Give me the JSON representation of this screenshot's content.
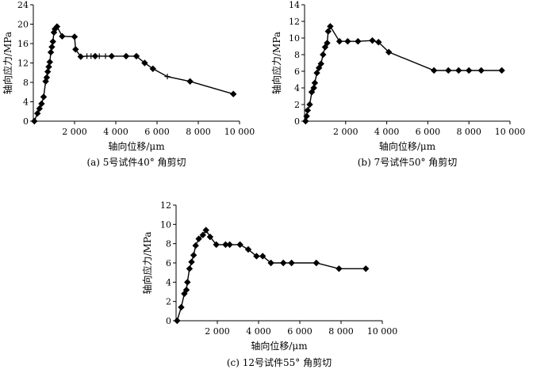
{
  "chart_data": [
    {
      "type": "line",
      "caption": "(a) 5号试件40° 角剪切",
      "xlabel": "轴向位移/μm",
      "ylabel": "轴向应力/MPa",
      "xlim": [
        0,
        10000
      ],
      "ylim": [
        0,
        24
      ],
      "xticks": [
        2000,
        4000,
        6000,
        8000,
        10000
      ],
      "xtick_labels": [
        "2 000",
        "4 000",
        "6 000",
        "8 000",
        "10 000"
      ],
      "yticks": [
        0,
        4,
        8,
        12,
        16,
        20,
        24
      ],
      "series": [
        {
          "marker": "diamond",
          "points": [
            [
              50,
              0
            ],
            [
              200,
              1.6
            ],
            [
              300,
              2.6
            ],
            [
              400,
              3.6
            ],
            [
              500,
              5.0
            ],
            [
              600,
              8.2
            ],
            [
              650,
              9.0
            ],
            [
              700,
              10.2
            ],
            [
              750,
              11.2
            ],
            [
              800,
              12.2
            ],
            [
              850,
              14.2
            ],
            [
              900,
              15.3
            ],
            [
              950,
              16.4
            ],
            [
              1000,
              18.3
            ],
            [
              1050,
              19.0
            ],
            [
              1150,
              19.5
            ],
            [
              1400,
              17.5
            ],
            [
              2000,
              17.4
            ],
            [
              2050,
              14.8
            ],
            [
              2300,
              13.3
            ],
            [
              3000,
              13.4
            ],
            [
              3800,
              13.4
            ],
            [
              4500,
              13.4
            ],
            [
              5000,
              13.4
            ],
            [
              5400,
              12.0
            ],
            [
              5800,
              10.8
            ],
            [
              7600,
              8.2
            ],
            [
              9700,
              5.6
            ]
          ]
        },
        {
          "marker": "plus",
          "points": [
            [
              2600,
              13.4
            ],
            [
              2800,
              13.4
            ],
            [
              3200,
              13.4
            ],
            [
              3500,
              13.4
            ],
            [
              6500,
              9.2
            ]
          ]
        }
      ]
    },
    {
      "type": "line",
      "caption": "(b) 7号试件50° 角剪切",
      "xlabel": "轴向位移/μm",
      "ylabel": "轴向应力/MPa",
      "xlim": [
        0,
        10000
      ],
      "ylim": [
        0,
        14
      ],
      "xticks": [
        2000,
        4000,
        6000,
        8000,
        10000
      ],
      "xtick_labels": [
        "2 000",
        "4 000",
        "6 000",
        "8 000",
        "10 000"
      ],
      "yticks": [
        0,
        2,
        4,
        6,
        8,
        10,
        12,
        14
      ],
      "series": [
        {
          "marker": "diamond",
          "points": [
            [
              50,
              0
            ],
            [
              100,
              0.6
            ],
            [
              150,
              1.3
            ],
            [
              250,
              2.0
            ],
            [
              350,
              3.5
            ],
            [
              450,
              4.0
            ],
            [
              500,
              4.6
            ],
            [
              600,
              5.8
            ],
            [
              700,
              6.4
            ],
            [
              800,
              6.9
            ],
            [
              900,
              8.0
            ],
            [
              1000,
              8.9
            ],
            [
              1100,
              9.4
            ],
            [
              1150,
              10.8
            ],
            [
              1250,
              11.4
            ],
            [
              1700,
              9.6
            ],
            [
              2100,
              9.6
            ],
            [
              2600,
              9.6
            ],
            [
              3300,
              9.7
            ],
            [
              3600,
              9.5
            ],
            [
              4100,
              8.3
            ],
            [
              6300,
              6.1
            ],
            [
              7000,
              6.1
            ],
            [
              7500,
              6.1
            ],
            [
              8000,
              6.1
            ],
            [
              8600,
              6.1
            ],
            [
              9600,
              6.1
            ]
          ]
        }
      ]
    },
    {
      "type": "line",
      "caption": "(c) 12号试件55° 角剪切",
      "xlabel": "轴向位移/μm",
      "ylabel": "轴向应力/MPa",
      "xlim": [
        0,
        10000
      ],
      "ylim": [
        0,
        12
      ],
      "xticks": [
        2000,
        4000,
        6000,
        8000,
        10000
      ],
      "xtick_labels": [
        "2 000",
        "4 000",
        "6 000",
        "8 000",
        "10 000"
      ],
      "yticks": [
        0,
        2,
        4,
        6,
        8,
        10,
        12
      ],
      "series": [
        {
          "marker": "diamond",
          "points": [
            [
              50,
              0
            ],
            [
              250,
              1.4
            ],
            [
              400,
              2.8
            ],
            [
              500,
              3.2
            ],
            [
              550,
              4.0
            ],
            [
              650,
              5.4
            ],
            [
              750,
              6.1
            ],
            [
              850,
              6.8
            ],
            [
              950,
              7.8
            ],
            [
              1100,
              8.5
            ],
            [
              1300,
              8.9
            ],
            [
              1450,
              9.4
            ],
            [
              1650,
              8.7
            ],
            [
              1950,
              7.9
            ],
            [
              2400,
              7.9
            ],
            [
              2600,
              7.9
            ],
            [
              3100,
              7.9
            ],
            [
              3500,
              7.4
            ],
            [
              3900,
              6.7
            ],
            [
              4200,
              6.7
            ],
            [
              4600,
              6.0
            ],
            [
              5200,
              6.0
            ],
            [
              5600,
              6.0
            ],
            [
              6800,
              6.0
            ],
            [
              7900,
              5.4
            ],
            [
              9200,
              5.4
            ]
          ]
        }
      ]
    }
  ]
}
